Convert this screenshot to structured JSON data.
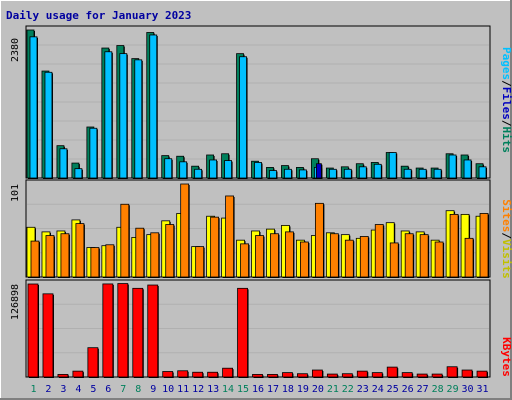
{
  "colors": {
    "background": "#c0c0c0",
    "plot_bg": "#c0c0c0",
    "grid": "#b0b0b0",
    "title": "#0000a0",
    "hits": "#00805c",
    "files": "#00c0ff",
    "sites": "#ff8000",
    "visits": "#ffff00",
    "kbytes": "#ff0000",
    "weekend": "#00805c",
    "weekday": "#0000a0"
  },
  "chart_data": [
    {
      "type": "bar",
      "title": "Daily usage for January 2023",
      "max_label": "2380",
      "legend": [
        "Pages",
        "/",
        "Files",
        "/",
        "Hits"
      ],
      "categories": [
        "1",
        "2",
        "3",
        "4",
        "5",
        "6",
        "7",
        "8",
        "9",
        "10",
        "11",
        "12",
        "13",
        "14",
        "15",
        "16",
        "17",
        "18",
        "19",
        "20",
        "21",
        "22",
        "23",
        "24",
        "25",
        "26",
        "27",
        "28",
        "29",
        "30",
        "31"
      ],
      "weekend_days": [
        "1",
        "7",
        "8",
        "14",
        "15",
        "21",
        "22",
        "28",
        "29"
      ],
      "ylim": [
        0,
        2380
      ],
      "series": [
        {
          "name": "Hits",
          "values": [
            2380,
            1720,
            520,
            240,
            820,
            2090,
            2130,
            1920,
            2340,
            360,
            350,
            190,
            370,
            390,
            2000,
            270,
            170,
            200,
            170,
            310,
            160,
            180,
            230,
            250,
            410,
            190,
            160,
            160,
            390,
            370,
            230
          ]
        },
        {
          "name": "Files",
          "values": [
            2270,
            1700,
            470,
            150,
            800,
            2030,
            2000,
            1900,
            2300,
            310,
            260,
            140,
            290,
            280,
            1950,
            250,
            120,
            140,
            130,
            170,
            140,
            140,
            180,
            220,
            410,
            140,
            140,
            140,
            370,
            290,
            180
          ]
        },
        {
          "name": "Pages",
          "values": [
            0,
            0,
            0,
            0,
            0,
            0,
            0,
            0,
            0,
            0,
            0,
            0,
            0,
            0,
            0,
            0,
            0,
            0,
            0,
            230,
            0,
            0,
            0,
            0,
            0,
            0,
            0,
            0,
            0,
            0,
            0
          ]
        }
      ]
    },
    {
      "type": "bar",
      "max_label": "101",
      "legend": [
        "Sites",
        "/",
        "Visits"
      ],
      "categories": [
        "1",
        "2",
        "3",
        "4",
        "5",
        "6",
        "7",
        "8",
        "9",
        "10",
        "11",
        "12",
        "13",
        "14",
        "15",
        "16",
        "17",
        "18",
        "19",
        "20",
        "21",
        "22",
        "23",
        "24",
        "25",
        "26",
        "27",
        "28",
        "29",
        "30",
        "31"
      ],
      "ylim": [
        0,
        101
      ],
      "series": [
        {
          "name": "Visits",
          "values": [
            54,
            49,
            50,
            62,
            32,
            34,
            54,
            43,
            46,
            61,
            69,
            33,
            66,
            64,
            40,
            50,
            52,
            56,
            40,
            45,
            48,
            46,
            42,
            51,
            59,
            50,
            49,
            40,
            72,
            68,
            66
          ]
        },
        {
          "name": "Sites",
          "values": [
            39,
            45,
            47,
            58,
            32,
            35,
            79,
            53,
            48,
            57,
            101,
            33,
            65,
            88,
            36,
            45,
            47,
            49,
            38,
            80,
            47,
            40,
            44,
            57,
            37,
            47,
            46,
            38,
            68,
            42,
            69
          ]
        }
      ]
    },
    {
      "type": "bar",
      "max_label": "126898",
      "legend": [
        "KBytes"
      ],
      "categories": [
        "1",
        "2",
        "3",
        "4",
        "5",
        "6",
        "7",
        "8",
        "9",
        "10",
        "11",
        "12",
        "13",
        "14",
        "15",
        "16",
        "17",
        "18",
        "19",
        "20",
        "21",
        "22",
        "23",
        "24",
        "25",
        "26",
        "27",
        "28",
        "29",
        "30",
        "31"
      ],
      "ylim": [
        0,
        126898
      ],
      "series": [
        {
          "name": "KBytes",
          "values": [
            126898,
            113500,
            3500,
            8000,
            40000,
            127000,
            127500,
            121000,
            125500,
            7500,
            8500,
            6500,
            6500,
            12000,
            121000,
            3500,
            3500,
            6000,
            4500,
            9500,
            4000,
            4500,
            8000,
            6000,
            13500,
            6000,
            4000,
            4000,
            14000,
            9500,
            8000
          ]
        }
      ]
    }
  ]
}
